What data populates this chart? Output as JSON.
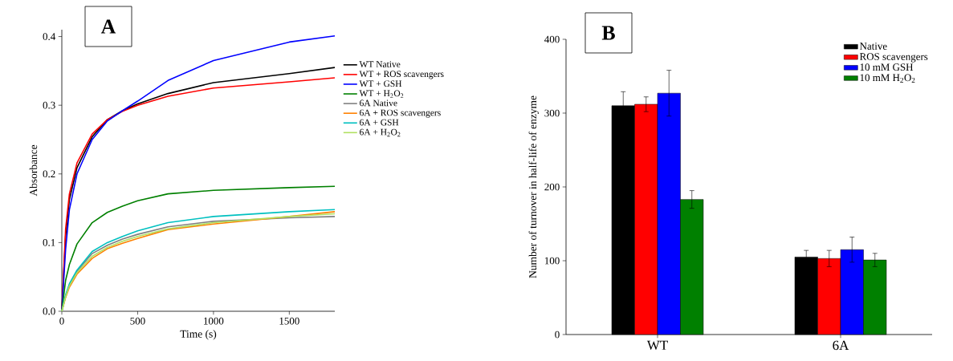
{
  "chart_data": [
    {
      "type": "line",
      "annotations": [
        "A"
      ],
      "xlabel": "Time (s)",
      "ylabel": "Absorbance",
      "xlim": [
        0,
        1800
      ],
      "ylim": [
        0,
        0.41
      ],
      "xticks": [
        0,
        500,
        1000,
        1500
      ],
      "yticks": [
        {
          "value": 0,
          "label": "0.0"
        },
        0.1,
        0.2,
        0.3,
        0.4
      ],
      "legend": "right",
      "grid": false,
      "marker": "none",
      "x": [
        0,
        25,
        50,
        100,
        200,
        300,
        400,
        500,
        700,
        1000,
        1500,
        1800
      ],
      "series": [
        {
          "name": "WT Native",
          "color": "#000000",
          "values": [
            0,
            0.11,
            0.163,
            0.209,
            0.254,
            0.279,
            0.292,
            0.302,
            0.317,
            0.333,
            0.346,
            0.355
          ]
        },
        {
          "name": "WT + ROS scavengers",
          "color": "#ff0000",
          "values": [
            0,
            0.12,
            0.171,
            0.216,
            0.258,
            0.279,
            0.291,
            0.3,
            0.313,
            0.325,
            0.334,
            0.34
          ]
        },
        {
          "name": "WT + GSH",
          "color": "#0000ff",
          "values": [
            0,
            0.09,
            0.148,
            0.2,
            0.25,
            0.277,
            0.292,
            0.306,
            0.336,
            0.365,
            0.392,
            0.401
          ]
        },
        {
          "name": "WT + H$_{2}$O$_{2}$",
          "color": "#008000",
          "values": [
            0,
            0.045,
            0.068,
            0.098,
            0.129,
            0.144,
            0.153,
            0.161,
            0.171,
            0.176,
            0.18,
            0.182
          ]
        },
        {
          "name": "6A Native",
          "color": "#808080",
          "values": [
            0,
            0.022,
            0.038,
            0.058,
            0.084,
            0.096,
            0.105,
            0.112,
            0.123,
            0.131,
            0.136,
            0.138
          ]
        },
        {
          "name": "6A + ROS scavengers",
          "color": "#ff8000",
          "values": [
            0,
            0.02,
            0.035,
            0.054,
            0.077,
            0.091,
            0.099,
            0.106,
            0.119,
            0.127,
            0.138,
            0.145
          ]
        },
        {
          "name": "6A + GSH",
          "color": "#00c0c0",
          "values": [
            0,
            0.024,
            0.04,
            0.06,
            0.087,
            0.1,
            0.109,
            0.117,
            0.129,
            0.138,
            0.145,
            0.148
          ]
        },
        {
          "name": "6A + H$_{2}$O$_{2}$",
          "color": "#b0e060",
          "values": [
            0,
            0.021,
            0.037,
            0.056,
            0.08,
            0.093,
            0.102,
            0.109,
            0.12,
            0.129,
            0.138,
            0.142
          ]
        }
      ]
    },
    {
      "type": "bar",
      "annotations": [
        "B"
      ],
      "categories": [
        "WT",
        "6A"
      ],
      "ylabel": "Number of turnover in half-life of enzyme",
      "ylim": [
        0,
        400
      ],
      "yticks": [
        0,
        100,
        200,
        300,
        400
      ],
      "legend": "top right",
      "grid": false,
      "series": [
        {
          "name": "Native",
          "color": "#000000",
          "values": [
            310,
            105
          ],
          "errors": [
            19,
            9
          ]
        },
        {
          "name": "ROS scavengers",
          "color": "#ff0000",
          "values": [
            312,
            103
          ],
          "errors": [
            10,
            11
          ]
        },
        {
          "name": "10 mM GSH",
          "color": "#0000ff",
          "values": [
            327,
            115
          ],
          "errors": [
            31,
            17
          ]
        },
        {
          "name": "10 mM H$_{2}$O$_{2}$",
          "color": "#008000",
          "values": [
            183,
            101
          ],
          "errors": [
            12,
            9
          ]
        }
      ]
    }
  ]
}
